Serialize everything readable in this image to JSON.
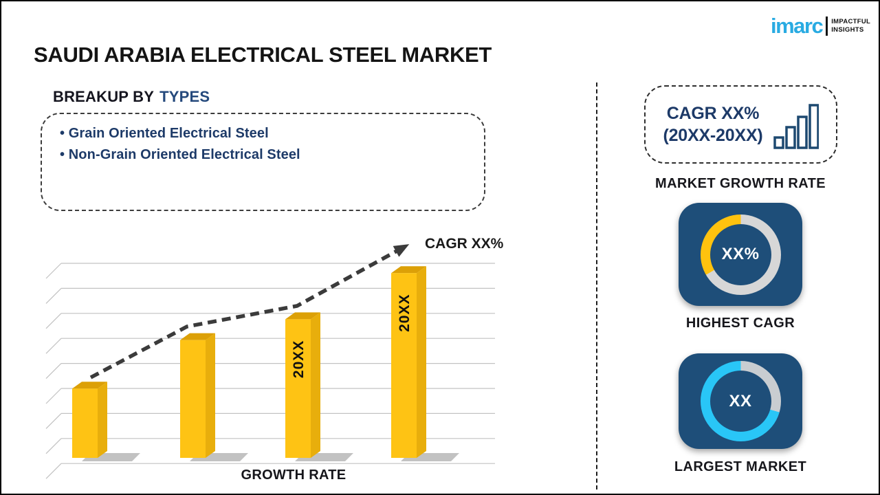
{
  "header": {
    "title": "SAUDI ARABIA ELECTRICAL STEEL MARKET"
  },
  "logo": {
    "brand": "imarc",
    "brand_color": "#29ABE2",
    "tagline_line1": "IMPACTFUL",
    "tagline_line2": "INSIGHTS"
  },
  "breakup": {
    "heading_prefix": "BREAKUP BY",
    "heading_highlight": "TYPES",
    "items": [
      "Grain Oriented Electrical Steel",
      "Non-Grain Oriented Electrical Steel"
    ]
  },
  "chart_data": {
    "type": "bar",
    "title": "",
    "xlabel": "GROWTH RATE",
    "ylabel": "",
    "categories": [
      "",
      "",
      "20XX",
      "20XX"
    ],
    "values": [
      30,
      51,
      60,
      80
    ],
    "ylim": [
      0,
      100
    ],
    "yaxis_visible": false,
    "gridlines": 9,
    "legend": "none",
    "bar_labels": [
      "",
      "",
      "20XX",
      "20XX"
    ],
    "trend_label": "CAGR XX%",
    "trend_color": "#3b3b3b",
    "bar_colors": {
      "front": "#FEC314",
      "top": "#DCA007",
      "side": "#E8AE0C",
      "shadow": "#8f8f8f"
    }
  },
  "sidebar": {
    "cagr_box": {
      "line1": "CAGR XX%",
      "line2": "(20XX-20XX)"
    },
    "market_growth_rate_label": "MARKET GROWTH RATE",
    "highest_cagr": {
      "center_label": "XX%",
      "caption": "HIGHEST CAGR",
      "card_color": "#1E4E79",
      "ring_base_color": "#D7D7D7",
      "accent_color": "#FFC20E",
      "accent_start_deg": 240,
      "accent_end_deg": 360
    },
    "largest_market": {
      "center_label": "XX",
      "caption": "LARGEST MARKET",
      "card_color": "#1E4E79",
      "ring_base_color": "#29C6F7",
      "accent_color": "#C9CDD1",
      "accent_start_deg": 0,
      "accent_end_deg": 106
    }
  }
}
